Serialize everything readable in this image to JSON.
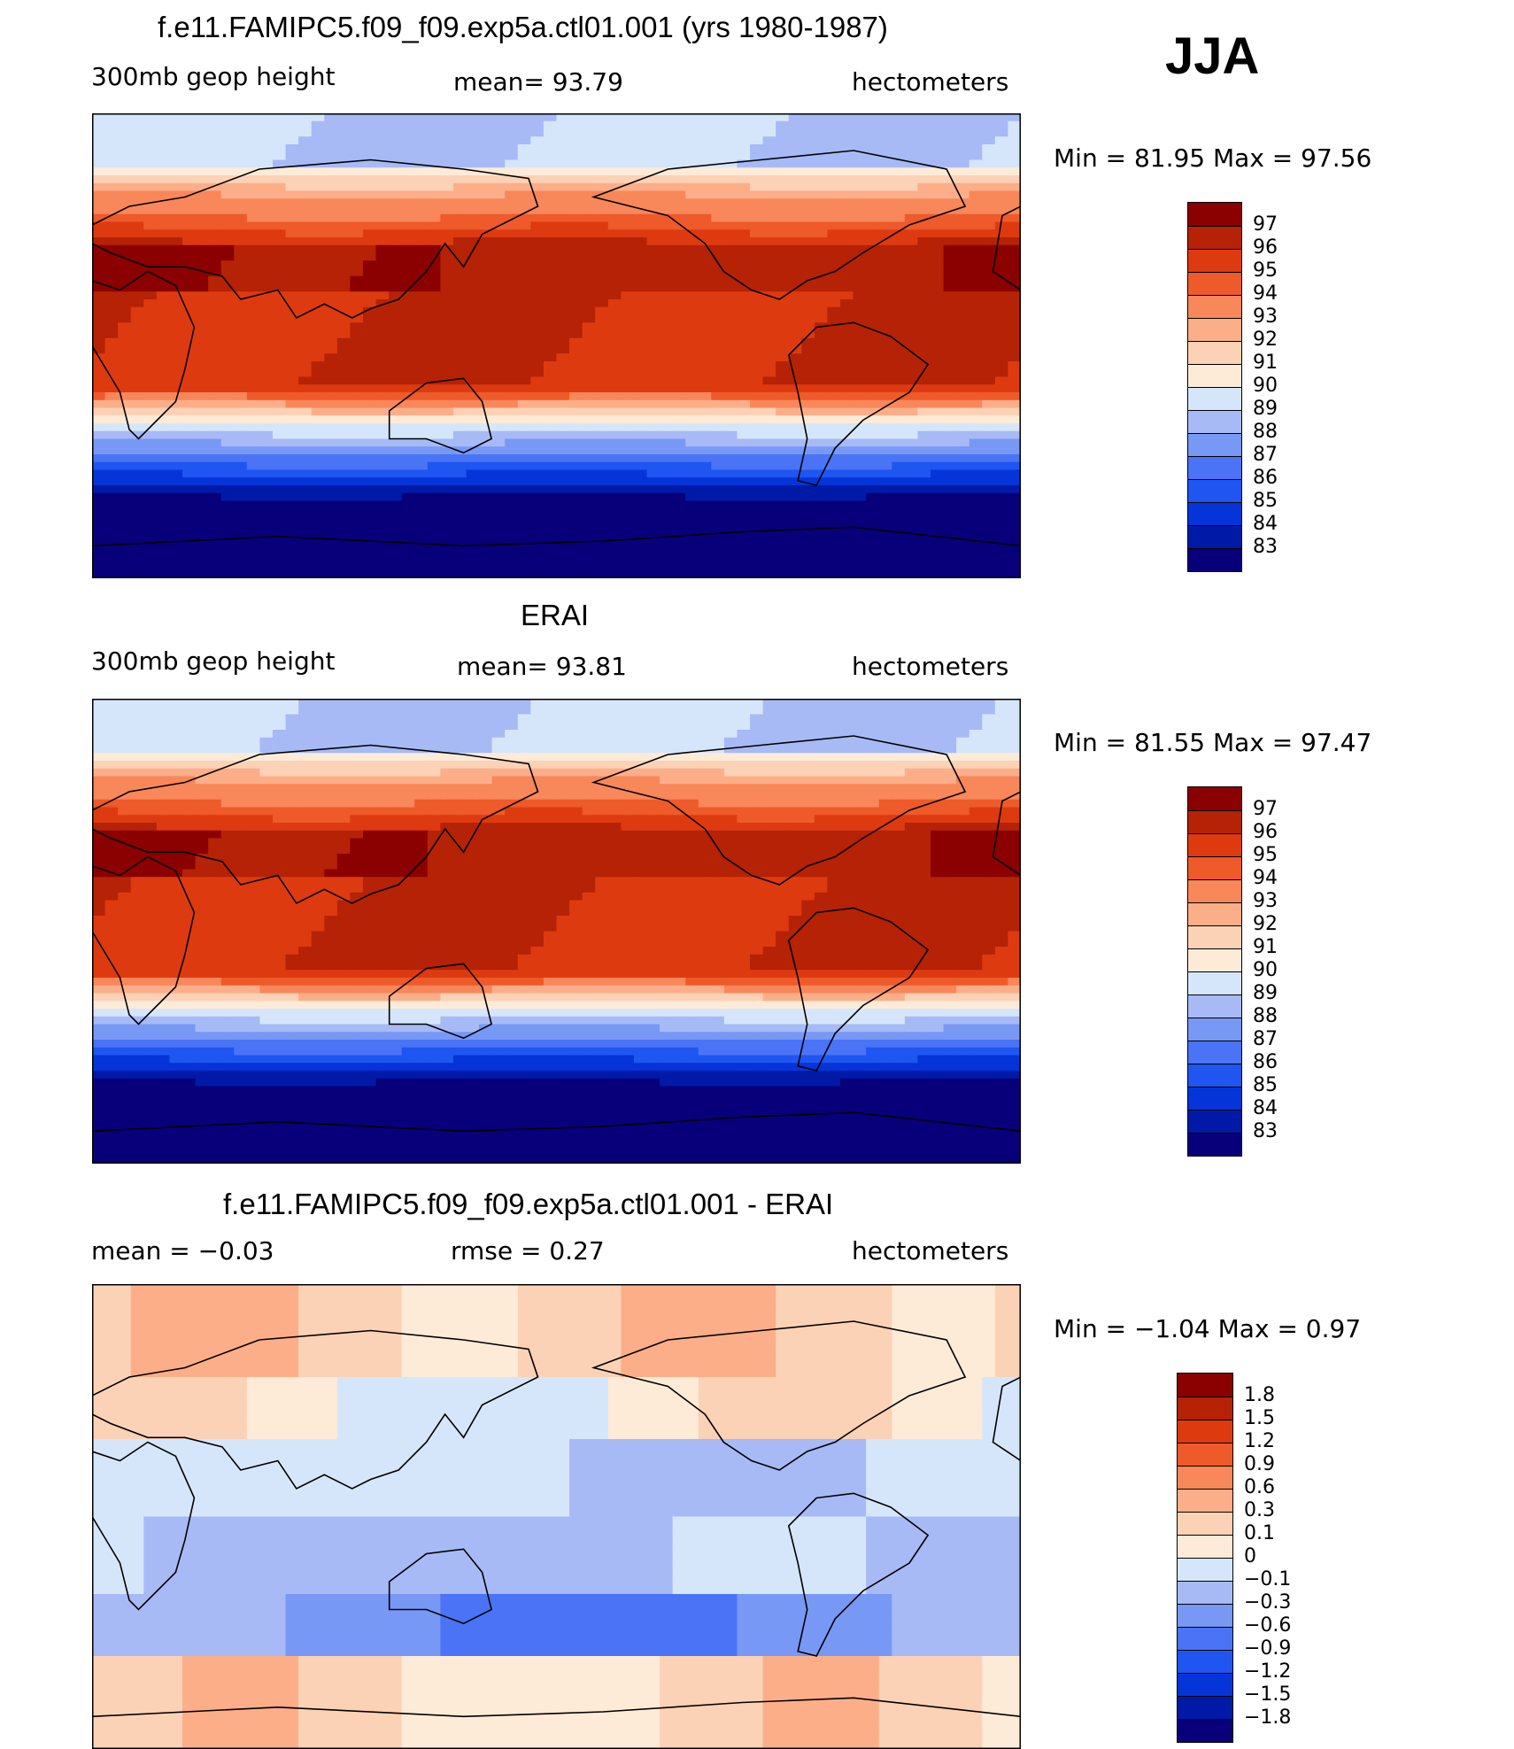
{
  "season": "JJA",
  "colors": {
    "abs": [
      "#08007a",
      "#001aa8",
      "#0535d8",
      "#1f55f0",
      "#4a74f5",
      "#7898f5",
      "#a7baf5",
      "#d6e6fa",
      "#fdebd8",
      "#fcd2b6",
      "#fcae89",
      "#f8875a",
      "#ee5a2a",
      "#de3a10",
      "#b52206",
      "#8b0000"
    ],
    "diff": [
      "#08007a",
      "#001aa8",
      "#0535d8",
      "#1f55f0",
      "#4a74f5",
      "#7898f5",
      "#a7baf5",
      "#d6e6fa",
      "#fdebd8",
      "#fcd2b6",
      "#fcae89",
      "#f8875a",
      "#ee5a2a",
      "#de3a10",
      "#b52206",
      "#8b0000"
    ]
  },
  "panels": [
    {
      "title": "f.e11.FAMIPC5.f09_f09.exp5a.ctl01.001 (yrs 1980-1987)",
      "left_label": "300mb geop height",
      "center_label": "mean=  93.79",
      "right_label": "hectometers",
      "minmax": "Min =   81.95 Max =   97.56",
      "kind": "abs",
      "levels": [
        "97",
        "96",
        "95",
        "94",
        "93",
        "92",
        "91",
        "90",
        "89",
        "88",
        "87",
        "86",
        "85",
        "84",
        "83"
      ]
    },
    {
      "title": "ERAI",
      "left_label": "300mb geop height",
      "center_label": "mean=  93.81",
      "right_label": "hectometers",
      "minmax": "Min =   81.55 Max =   97.47",
      "kind": "abs",
      "levels": [
        "97",
        "96",
        "95",
        "94",
        "93",
        "92",
        "91",
        "90",
        "89",
        "88",
        "87",
        "86",
        "85",
        "84",
        "83"
      ]
    },
    {
      "title": "f.e11.FAMIPC5.f09_f09.exp5a.ctl01.001 - ERAI",
      "left_label": "mean =   −0.03",
      "center_label": "rmse =    0.27",
      "right_label": "hectometers",
      "minmax": "Min =   −1.04 Max =    0.97",
      "kind": "diff",
      "levels": [
        "1.8",
        "1.5",
        "1.2",
        "0.9",
        "0.6",
        "0.3",
        "0.1",
        "0",
        "−0.1",
        "−0.3",
        "−0.6",
        "−0.9",
        "−1.2",
        "−1.5",
        "−1.8"
      ]
    }
  ]
}
